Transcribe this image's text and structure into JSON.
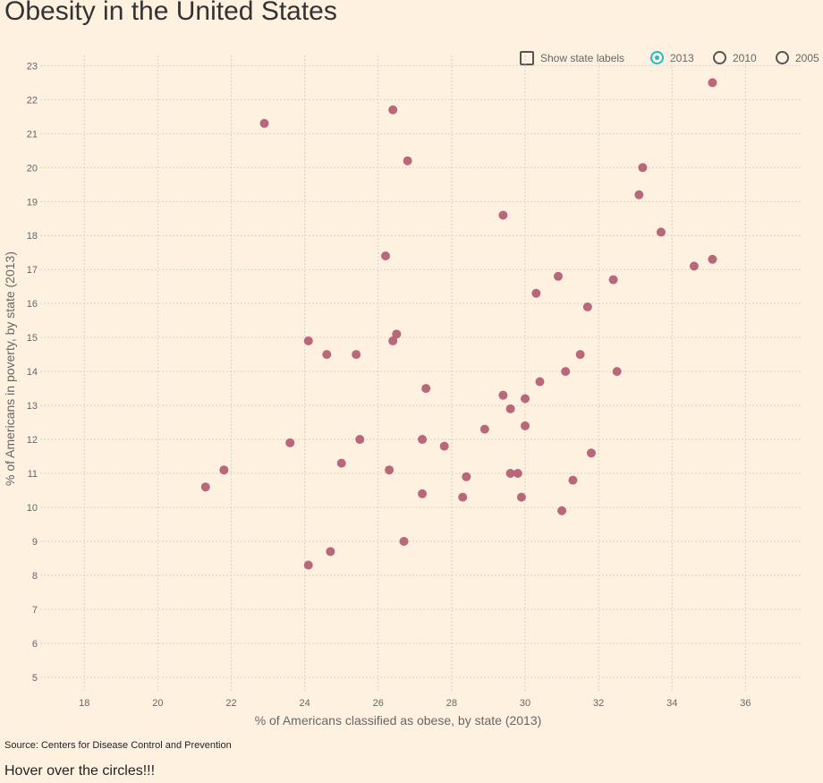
{
  "title": "Obesity in the United States",
  "controls": {
    "show_labels": "Show state labels",
    "years": [
      "2013",
      "2010",
      "2005"
    ],
    "selected_year": "2013"
  },
  "source": "Source: Centers for Disease Control and Prevention",
  "hint": "Hover over the circles!!!",
  "colors": {
    "point": "#b9677a",
    "grid": "#d9d2c5",
    "axis_text": "#666666",
    "radio_selected": "#2bb7c4"
  },
  "chart_data": {
    "type": "scatter",
    "xlabel": "% of Americans classified as obese, by state (2013)",
    "ylabel": "% of Americans in poverty, by state (2013)",
    "xlim": [
      16.8,
      37.5
    ],
    "ylim": [
      4.6,
      23.3
    ],
    "xticks": [
      18,
      20,
      22,
      24,
      26,
      28,
      30,
      32,
      34,
      36
    ],
    "yticks": [
      5,
      6,
      7,
      8,
      9,
      10,
      11,
      12,
      13,
      14,
      15,
      16,
      17,
      18,
      19,
      20,
      21,
      22,
      23
    ],
    "grid": true,
    "points": [
      {
        "x": 35.1,
        "y": 22.5
      },
      {
        "x": 26.4,
        "y": 21.7
      },
      {
        "x": 22.9,
        "y": 21.3
      },
      {
        "x": 26.8,
        "y": 20.2
      },
      {
        "x": 33.2,
        "y": 20.0
      },
      {
        "x": 33.1,
        "y": 19.2
      },
      {
        "x": 29.4,
        "y": 18.6
      },
      {
        "x": 33.7,
        "y": 18.1
      },
      {
        "x": 26.2,
        "y": 17.4
      },
      {
        "x": 35.1,
        "y": 17.3
      },
      {
        "x": 34.6,
        "y": 17.1
      },
      {
        "x": 30.9,
        "y": 16.8
      },
      {
        "x": 32.4,
        "y": 16.7
      },
      {
        "x": 30.3,
        "y": 16.3
      },
      {
        "x": 31.7,
        "y": 15.9
      },
      {
        "x": 26.5,
        "y": 15.1
      },
      {
        "x": 24.1,
        "y": 14.9
      },
      {
        "x": 26.4,
        "y": 14.9
      },
      {
        "x": 24.6,
        "y": 14.5
      },
      {
        "x": 25.4,
        "y": 14.5
      },
      {
        "x": 31.5,
        "y": 14.5
      },
      {
        "x": 31.1,
        "y": 14.0
      },
      {
        "x": 32.5,
        "y": 14.0
      },
      {
        "x": 30.4,
        "y": 13.7
      },
      {
        "x": 27.3,
        "y": 13.5
      },
      {
        "x": 29.4,
        "y": 13.3
      },
      {
        "x": 30.0,
        "y": 13.2
      },
      {
        "x": 29.6,
        "y": 12.9
      },
      {
        "x": 30.0,
        "y": 12.4
      },
      {
        "x": 28.9,
        "y": 12.3
      },
      {
        "x": 25.5,
        "y": 12.0
      },
      {
        "x": 27.2,
        "y": 12.0
      },
      {
        "x": 23.6,
        "y": 11.9
      },
      {
        "x": 27.8,
        "y": 11.8
      },
      {
        "x": 31.8,
        "y": 11.6
      },
      {
        "x": 25.0,
        "y": 11.3
      },
      {
        "x": 21.8,
        "y": 11.1
      },
      {
        "x": 26.3,
        "y": 11.1
      },
      {
        "x": 29.6,
        "y": 11.0
      },
      {
        "x": 29.8,
        "y": 11.0
      },
      {
        "x": 28.4,
        "y": 10.9
      },
      {
        "x": 31.3,
        "y": 10.8
      },
      {
        "x": 21.3,
        "y": 10.6
      },
      {
        "x": 27.2,
        "y": 10.4
      },
      {
        "x": 28.3,
        "y": 10.3
      },
      {
        "x": 29.9,
        "y": 10.3
      },
      {
        "x": 31.0,
        "y": 9.9
      },
      {
        "x": 26.7,
        "y": 9.0
      },
      {
        "x": 24.7,
        "y": 8.7
      },
      {
        "x": 24.1,
        "y": 8.3
      }
    ]
  }
}
